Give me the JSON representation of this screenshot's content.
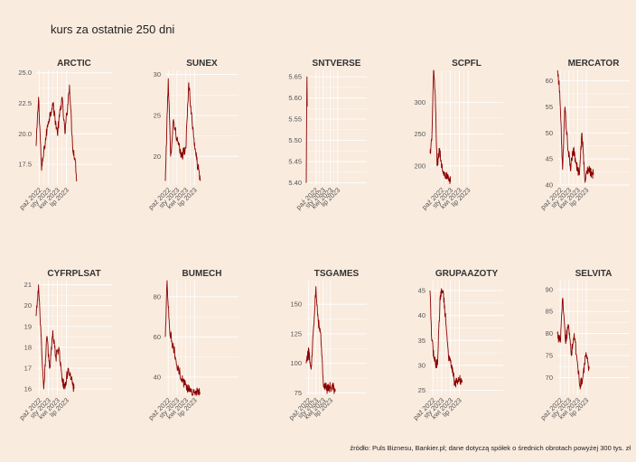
{
  "title": "kurs za ostatnie 250 dni",
  "caption": "źródło: Puls Biznesu, Bankier.pl; dane dotyczą spółek o średnich obrotach powyżej 300 tys. zł",
  "colors": {
    "background": "#f9ebde",
    "line": "#8b0000",
    "grid": "#ffffff"
  },
  "chart_data": [
    {
      "type": "line",
      "title": "ARCTIC",
      "xlim": [
        0,
        250
      ],
      "ylim": [
        15.8,
        25.2
      ],
      "yticks": [
        17.5,
        20.0,
        22.5,
        25.0
      ],
      "ytick_labels": [
        "17.5",
        "20.0",
        "22.5",
        "25.0"
      ],
      "xticks": [
        10,
        40,
        70,
        100
      ],
      "xtick_labels": [
        "paź 2022",
        "sty 2023",
        "kwi 2023",
        "lip 2023"
      ],
      "keypoints": [
        [
          0,
          19
        ],
        [
          8,
          23
        ],
        [
          18,
          17
        ],
        [
          28,
          19
        ],
        [
          40,
          21
        ],
        [
          55,
          22.5
        ],
        [
          70,
          20
        ],
        [
          85,
          23
        ],
        [
          95,
          20
        ],
        [
          110,
          24
        ],
        [
          120,
          19
        ],
        [
          128,
          18
        ],
        [
          134,
          16.2
        ]
      ]
    },
    {
      "type": "line",
      "title": "SUNEX",
      "xlim": [
        0,
        250
      ],
      "ylim": [
        16.5,
        30.5
      ],
      "yticks": [
        20,
        25,
        30
      ],
      "ytick_labels": [
        "20",
        "25",
        "30"
      ],
      "xticks": [
        10,
        40,
        70,
        100
      ],
      "xtick_labels": [
        "paź 2022",
        "sty 2023",
        "kwi 2023",
        "lip 2023"
      ],
      "keypoints": [
        [
          0,
          17
        ],
        [
          10,
          29.5
        ],
        [
          18,
          20
        ],
        [
          28,
          24.5
        ],
        [
          40,
          22
        ],
        [
          55,
          20
        ],
        [
          70,
          21
        ],
        [
          80,
          29
        ],
        [
          92,
          24
        ],
        [
          105,
          20
        ],
        [
          120,
          17
        ]
      ]
    },
    {
      "type": "line",
      "title": "SNTVERSE",
      "xlim": [
        0,
        250
      ],
      "ylim": [
        5.395,
        5.665
      ],
      "yticks": [
        5.4,
        5.45,
        5.5,
        5.55,
        5.6,
        5.65
      ],
      "ytick_labels": [
        "5.40",
        "5.45",
        "5.50",
        "5.55",
        "5.60",
        "5.65"
      ],
      "xticks": [
        40,
        70,
        100,
        130
      ],
      "xtick_labels": [
        "paź 2022",
        "sty 2023",
        "kwi 2023",
        "lip 2023"
      ],
      "keypoints": [
        [
          0,
          5.4
        ],
        [
          1,
          5.5
        ],
        [
          2,
          5.6
        ],
        [
          3,
          5.65
        ],
        [
          4,
          5.58
        ]
      ]
    },
    {
      "type": "line",
      "title": "SCPFL",
      "xlim": [
        0,
        250
      ],
      "ylim": [
        170,
        350
      ],
      "yticks": [
        200,
        250,
        300
      ],
      "ytick_labels": [
        "200",
        "250",
        "300"
      ],
      "xticks": [
        40,
        70,
        100,
        130
      ],
      "xtick_labels": [
        "paź 2022",
        "sty 2023",
        "kwi 2023",
        "lip 2023"
      ],
      "keypoints": [
        [
          0,
          220
        ],
        [
          6,
          240
        ],
        [
          12,
          350
        ],
        [
          18,
          310
        ],
        [
          24,
          200
        ],
        [
          32,
          225
        ],
        [
          42,
          195
        ],
        [
          50,
          190
        ],
        [
          60,
          180
        ],
        [
          70,
          175
        ]
      ]
    },
    {
      "type": "line",
      "title": "MERCATOR",
      "xlim": [
        0,
        250
      ],
      "ylim": [
        40,
        62
      ],
      "yticks": [
        40,
        45,
        50,
        55,
        60
      ],
      "ytick_labels": [
        "40",
        "45",
        "50",
        "55",
        "60"
      ],
      "xticks": [
        10,
        40,
        70,
        100
      ],
      "xtick_labels": [
        "paź 2022",
        "sty 2023",
        "kwi 2023",
        "lip 2023"
      ],
      "keypoints": [
        [
          0,
          62
        ],
        [
          8,
          58
        ],
        [
          18,
          43
        ],
        [
          26,
          55
        ],
        [
          35,
          48
        ],
        [
          45,
          43
        ],
        [
          55,
          47
        ],
        [
          65,
          44
        ],
        [
          75,
          42
        ],
        [
          85,
          50
        ],
        [
          95,
          41
        ],
        [
          105,
          43
        ],
        [
          125,
          42
        ]
      ]
    },
    {
      "type": "line",
      "title": "CYFRPLSAT",
      "xlim": [
        0,
        250
      ],
      "ylim": [
        15.7,
        21.2
      ],
      "yticks": [
        16,
        17,
        18,
        19,
        20,
        21
      ],
      "ytick_labels": [
        "16",
        "17",
        "18",
        "19",
        "20",
        "21"
      ],
      "xticks": [
        10,
        40,
        70,
        100
      ],
      "xtick_labels": [
        "paź 2022",
        "sty 2023",
        "kwi 2023",
        "lip 2023"
      ],
      "keypoints": [
        [
          0,
          19.5
        ],
        [
          8,
          21
        ],
        [
          18,
          18
        ],
        [
          25,
          16
        ],
        [
          35,
          18.5
        ],
        [
          45,
          17
        ],
        [
          55,
          18.8
        ],
        [
          65,
          17.5
        ],
        [
          75,
          18
        ],
        [
          85,
          16.5
        ],
        [
          95,
          16
        ],
        [
          105,
          17
        ],
        [
          115,
          16.5
        ],
        [
          125,
          16
        ]
      ]
    },
    {
      "type": "line",
      "title": "BUMECH",
      "xlim": [
        0,
        250
      ],
      "ylim": [
        31,
        88
      ],
      "yticks": [
        40,
        60,
        80
      ],
      "ytick_labels": [
        "40",
        "60",
        "80"
      ],
      "xticks": [
        10,
        40,
        70,
        100
      ],
      "xtick_labels": [
        "paź 2022",
        "sty 2023",
        "kwi 2023",
        "lip 2023"
      ],
      "keypoints": [
        [
          0,
          60
        ],
        [
          6,
          88
        ],
        [
          14,
          65
        ],
        [
          22,
          58
        ],
        [
          32,
          52
        ],
        [
          40,
          45
        ],
        [
          50,
          42
        ],
        [
          60,
          38
        ],
        [
          70,
          36
        ],
        [
          80,
          34
        ],
        [
          90,
          33
        ],
        [
          100,
          32
        ],
        [
          120,
          32
        ]
      ]
    },
    {
      "type": "line",
      "title": "TSGAMES",
      "xlim": [
        0,
        250
      ],
      "ylim": [
        73,
        170
      ],
      "yticks": [
        75,
        100,
        125,
        150
      ],
      "ytick_labels": [
        "75",
        "100",
        "125",
        "150"
      ],
      "xticks": [
        10,
        40,
        70,
        100
      ],
      "xtick_labels": [
        "paź 2022",
        "sty 2023",
        "kwi 2023",
        "lip 2023"
      ],
      "keypoints": [
        [
          0,
          100
        ],
        [
          10,
          110
        ],
        [
          20,
          95
        ],
        [
          30,
          130
        ],
        [
          40,
          165
        ],
        [
          50,
          135
        ],
        [
          60,
          125
        ],
        [
          70,
          85
        ],
        [
          80,
          80
        ],
        [
          90,
          78
        ],
        [
          100,
          80
        ],
        [
          120,
          78
        ]
      ]
    },
    {
      "type": "line",
      "title": "GRUPAAZOTY",
      "xlim": [
        0,
        250
      ],
      "ylim": [
        24,
        47
      ],
      "yticks": [
        25,
        30,
        35,
        40,
        45
      ],
      "ytick_labels": [
        "25",
        "30",
        "35",
        "40",
        "45"
      ],
      "xticks": [
        10,
        40,
        70,
        100
      ],
      "xtick_labels": [
        "paź 2022",
        "sty 2023",
        "kwi 2023",
        "lip 2023"
      ],
      "keypoints": [
        [
          0,
          45
        ],
        [
          6,
          35
        ],
        [
          15,
          31
        ],
        [
          25,
          30
        ],
        [
          35,
          44
        ],
        [
          45,
          45
        ],
        [
          55,
          38
        ],
        [
          65,
          31
        ],
        [
          75,
          30
        ],
        [
          85,
          26
        ],
        [
          95,
          27
        ],
        [
          110,
          27
        ]
      ]
    },
    {
      "type": "line",
      "title": "SELVITA",
      "xlim": [
        0,
        250
      ],
      "ylim": [
        66,
        92
      ],
      "yticks": [
        70,
        75,
        80,
        85,
        90
      ],
      "ytick_labels": [
        "70",
        "75",
        "80",
        "85",
        "90"
      ],
      "xticks": [
        10,
        40,
        70,
        100
      ],
      "xtick_labels": [
        "paź 2022",
        "sty 2023",
        "kwi 2023",
        "lip 2023"
      ],
      "keypoints": [
        [
          0,
          80
        ],
        [
          10,
          78
        ],
        [
          18,
          88
        ],
        [
          28,
          78
        ],
        [
          38,
          82
        ],
        [
          48,
          75
        ],
        [
          58,
          80
        ],
        [
          68,
          74
        ],
        [
          78,
          68
        ],
        [
          88,
          70
        ],
        [
          98,
          75
        ],
        [
          110,
          72
        ]
      ]
    }
  ]
}
